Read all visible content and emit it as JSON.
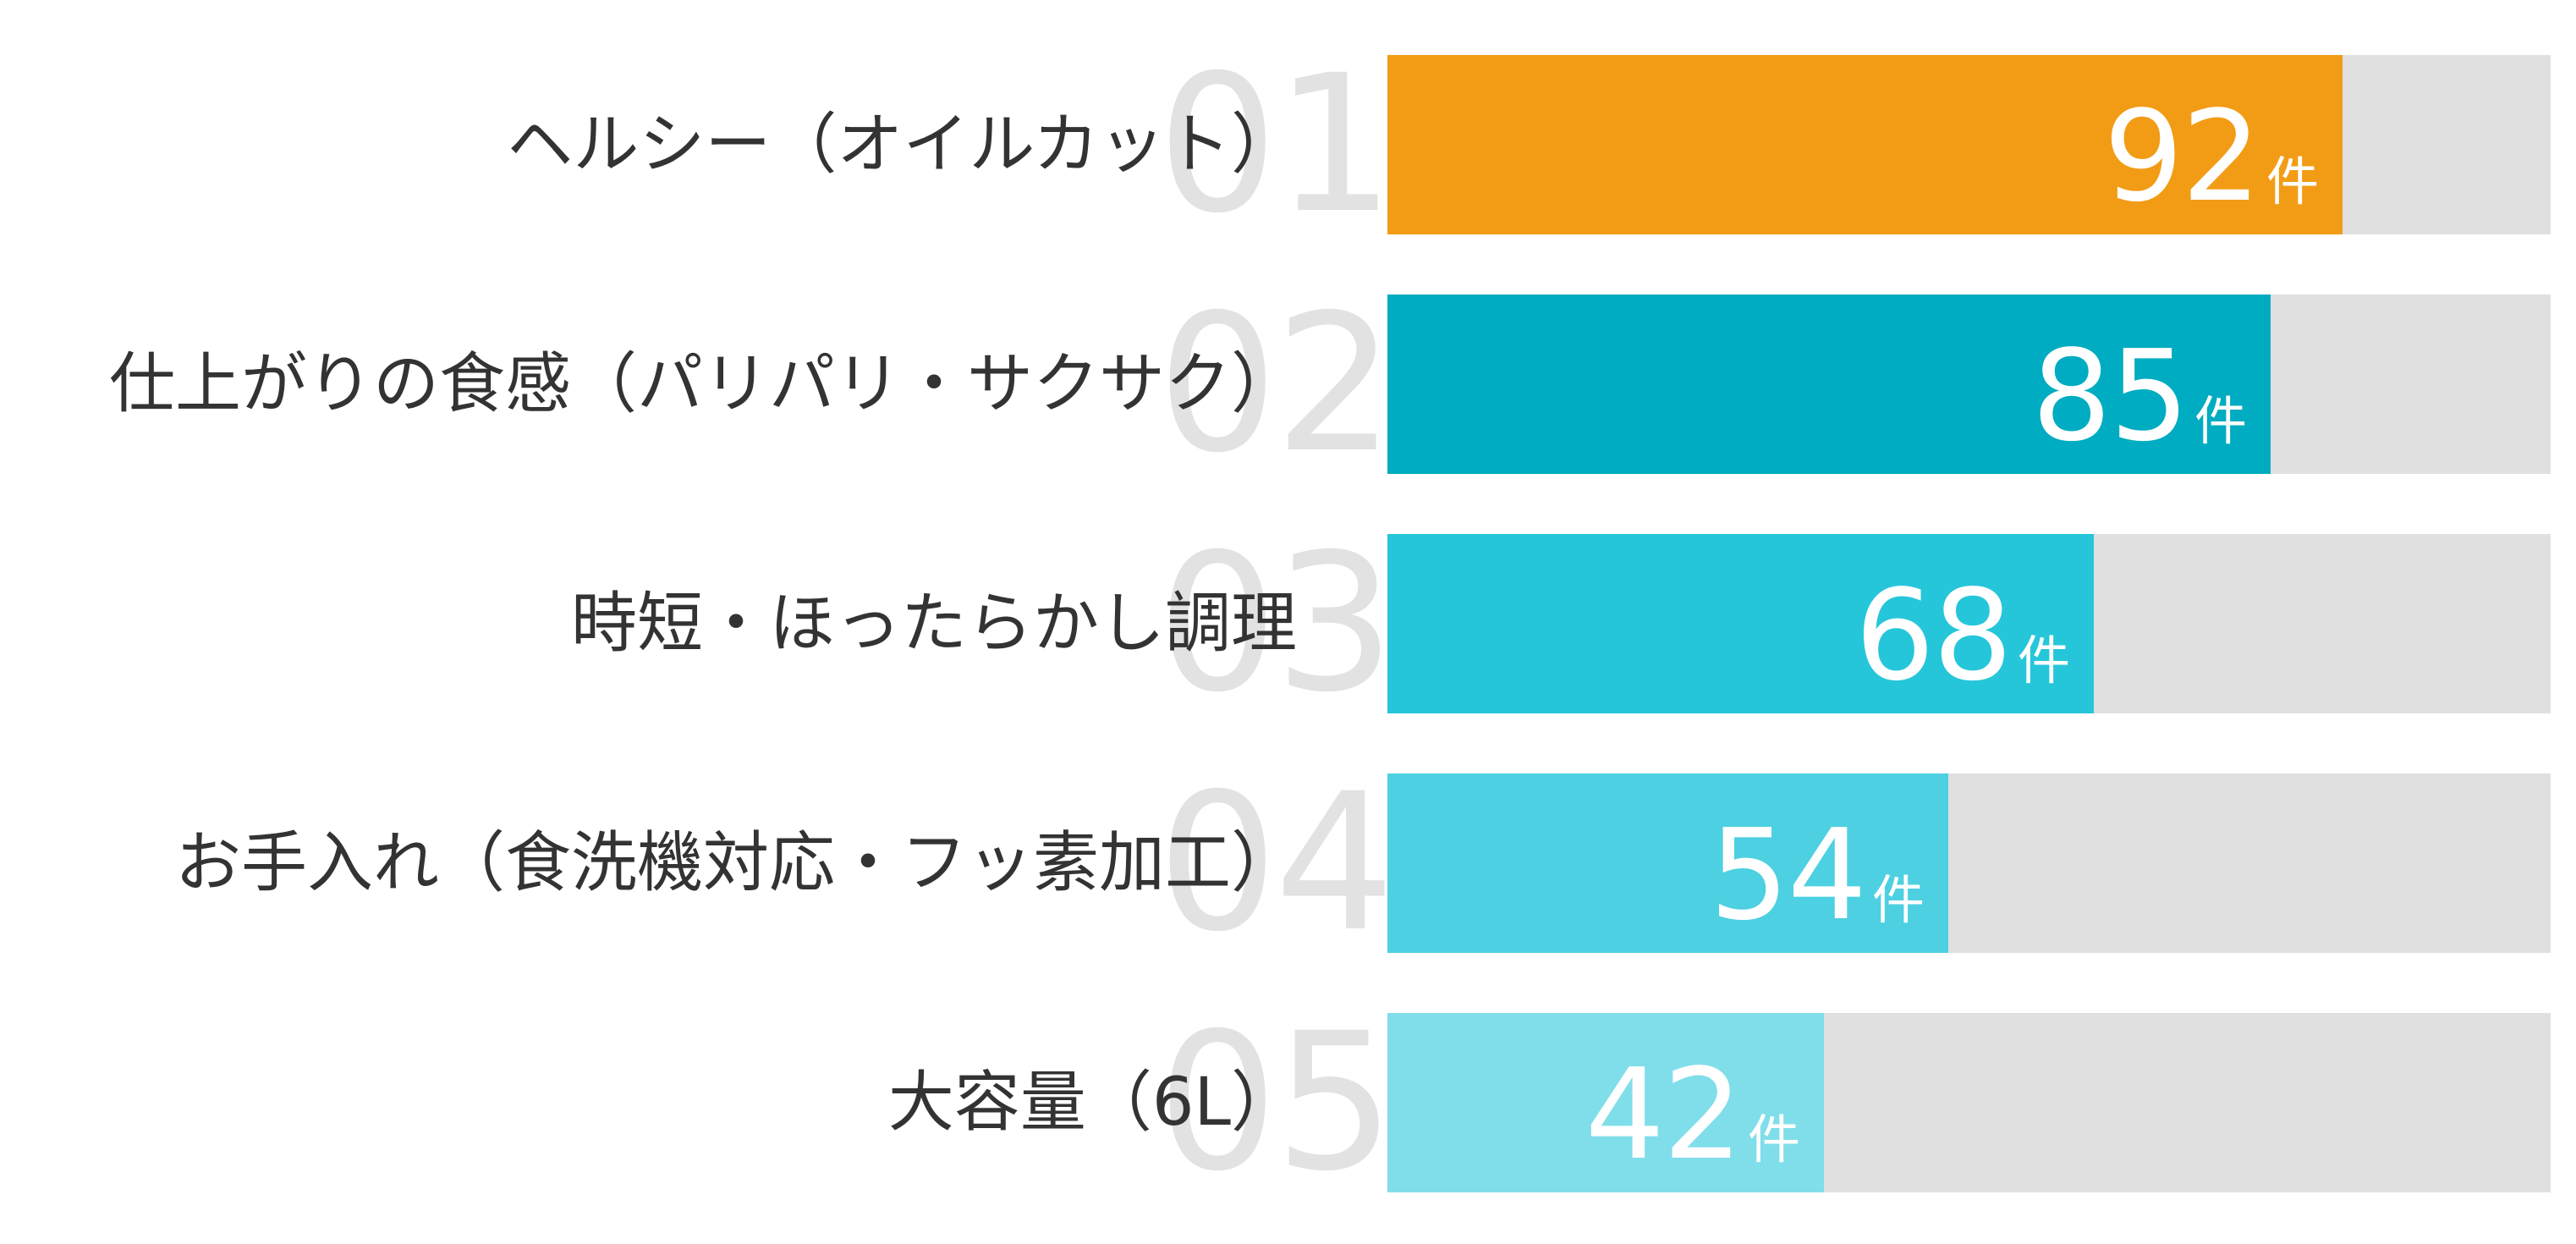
{
  "chart_data": {
    "type": "bar",
    "orientation": "horizontal",
    "categories": [
      "ヘルシー（オイルカット）",
      "仕上がりの食感（パリパリ・サクサク）",
      "時短・ほったらかし調理",
      "お手入れ（食洗機対応・フッ素加工）",
      "大容量（6L）"
    ],
    "ranks": [
      "01",
      "02",
      "03",
      "04",
      "05"
    ],
    "values": [
      92,
      85,
      68,
      54,
      42
    ],
    "unit": "件",
    "xlim": [
      0,
      112
    ],
    "colors": [
      "#f29c16",
      "#00acc1",
      "#26c6da",
      "#4dd0e1",
      "#80deea"
    ],
    "track_color": "#e0e0e0",
    "rank_color": "#e2e2e2",
    "grid": false,
    "legend": "none"
  }
}
